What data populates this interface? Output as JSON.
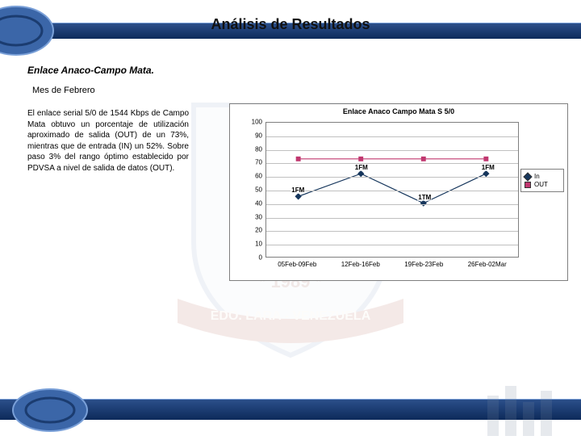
{
  "page": {
    "title": "Análisis de Resultados",
    "background": "#ffffff"
  },
  "watermark": {
    "ribbon_text": "EDO. LARA - VENEZUELA",
    "year_text": "* 1989 *",
    "shield_fill": "#dfe7ef",
    "ribbon_color": "#a03224",
    "opacity": 0.1
  },
  "section": {
    "heading": "Enlace Anaco-Campo Mata.",
    "subheading": "Mes de Febrero",
    "body": "El enlace serial 5/0 de 1544 Kbps de Campo Mata obtuvo un porcentaje de utilización aproximado de salida (OUT) de un 73%, mientras que de entrada (IN) un 52%. Sobre paso 3% del rango óptimo establecido por PDVSA a nivel de salida de datos (OUT).",
    "heading_fontsize": 12,
    "subheading_fontsize": 11,
    "body_fontsize": 10
  },
  "chart": {
    "type": "line",
    "title": "Enlace Anaco Campo Mata S 5/0",
    "title_fontsize": 9,
    "background_color": "#ffffff",
    "border_color": "#7f7f7f",
    "grid_color": "#c0c0c0",
    "ylim": [
      0,
      100
    ],
    "yticks": [
      0,
      10,
      20,
      30,
      40,
      50,
      60,
      70,
      80,
      90,
      100
    ],
    "tick_fontsize": 8,
    "categories": [
      "05Feb-09Feb",
      "12Feb-16Feb",
      "19Feb-23Feb",
      "26Feb-02Mar"
    ],
    "series": [
      {
        "name": "In",
        "color": "#16365c",
        "marker": "diamond",
        "marker_size": 6,
        "line_width": 1.2,
        "values": [
          45,
          62,
          40,
          62
        ],
        "value_labels": [
          "1FM",
          "1FM",
          "1TM",
          "1FM"
        ]
      },
      {
        "name": "OUT",
        "color": "#c0376f",
        "marker": "square",
        "marker_size": 6,
        "line_width": 1.2,
        "values": [
          73,
          73,
          73,
          73
        ]
      }
    ],
    "legend": {
      "position": "right",
      "border_color": "#7f7f7f",
      "fontsize": 8
    }
  },
  "bars": {
    "header_gradient_top": "#2b4f8a",
    "header_gradient_bottom": "#0d2a5a",
    "ellipse_fill": "#3b66a8",
    "ellipse_stroke": "#7aa0d8"
  }
}
